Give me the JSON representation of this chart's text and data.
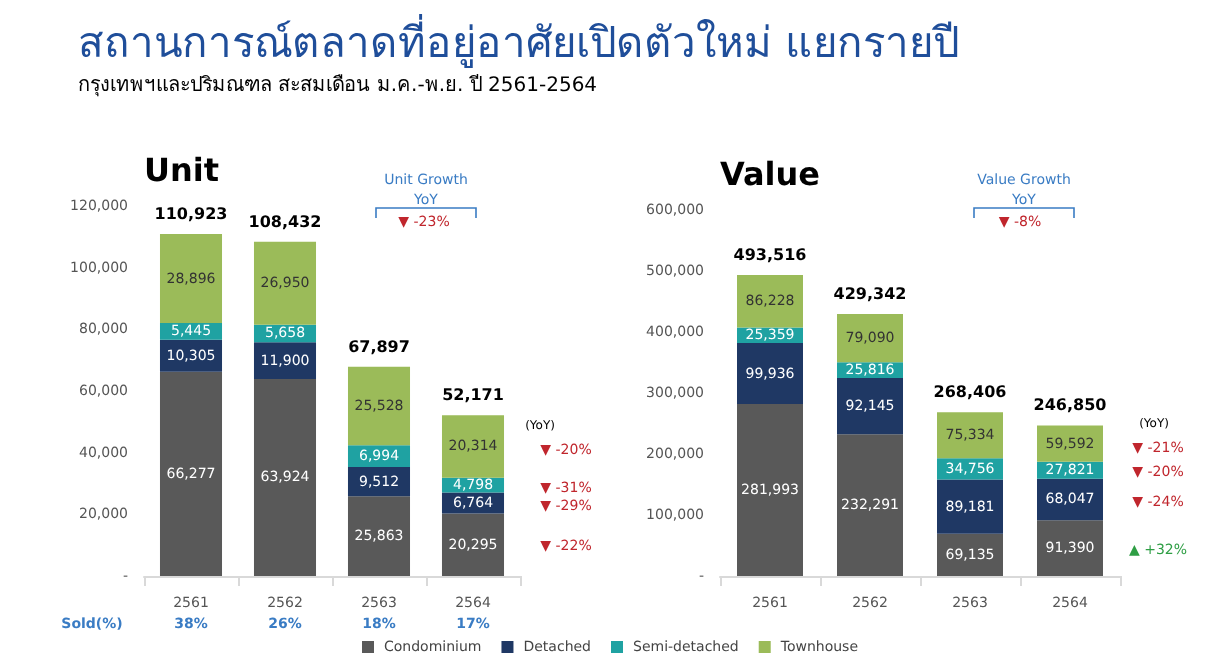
{
  "chart_data": [
    {
      "type": "bar",
      "title": "สถานการณ์ตลาดที่อยู่อาศัยเปิดตัวใหม่ แยกรายปี",
      "subtitle": "กรุงเทพฯและปริมณฑล สะสมเดือน ม.ค.-พ.ย. ปี 2561-2564",
      "ylabel": "Unit",
      "categories": [
        "2561",
        "2562",
        "2563",
        "2564"
      ],
      "stacked": true,
      "legend": "bottom",
      "grid": false,
      "ylim": [
        0,
        120000
      ],
      "yticks": [
        {
          "value": 0,
          "label": "-"
        },
        {
          "value": 20000,
          "label": "20,000"
        },
        {
          "value": 40000,
          "label": "40,000"
        },
        {
          "value": 60000,
          "label": "60,000"
        },
        {
          "value": 80000,
          "label": "80,000"
        },
        {
          "value": 100000,
          "label": "100,000"
        },
        {
          "value": 120000,
          "label": "120,000"
        }
      ],
      "series": [
        {
          "name": "Condominium",
          "color": "#595959",
          "values": [
            66277,
            63924,
            25863,
            20295
          ],
          "value_labels": [
            "66,277",
            "63,924",
            "25,863",
            "20,295"
          ]
        },
        {
          "name": "Detached",
          "color": "#1f3864",
          "values": [
            10305,
            11900,
            9512,
            6764
          ],
          "value_labels": [
            "10,305",
            "11,900",
            "9,512",
            "6,764"
          ]
        },
        {
          "name": "Semi-detached",
          "color": "#1fa2a2",
          "values": [
            5445,
            5658,
            6994,
            4798
          ],
          "value_labels": [
            "5,445",
            "5,658",
            "6,994",
            "4,798"
          ]
        },
        {
          "name": "Townhouse",
          "color": "#9bbb59",
          "values": [
            28896,
            26950,
            25528,
            20314
          ],
          "value_labels": [
            "28,896",
            "26,950",
            "25,528",
            "20,314"
          ]
        }
      ],
      "totals": [
        "110,923",
        "108,432",
        "67,897",
        "52,171"
      ],
      "annotations": [
        "Unit Growth",
        "YoY",
        "▼ -23%",
        "(YoY)",
        "▼ -20%",
        "▼ -31%",
        "▼ -29%",
        "▼ -22%",
        "Sold(%)",
        "38%",
        "26%",
        "18%",
        "17%"
      ]
    },
    {
      "type": "bar",
      "ylabel": "Value",
      "categories": [
        "2561",
        "2562",
        "2563",
        "2564"
      ],
      "stacked": true,
      "grid": false,
      "ylim": [
        0,
        600000
      ],
      "yticks": [
        {
          "value": 0,
          "label": "-"
        },
        {
          "value": 100000,
          "label": "100,000"
        },
        {
          "value": 200000,
          "label": "200,000"
        },
        {
          "value": 300000,
          "label": "300,000"
        },
        {
          "value": 400000,
          "label": "400,000"
        },
        {
          "value": 500000,
          "label": "500,000"
        },
        {
          "value": 600000,
          "label": "600,000"
        }
      ],
      "series": [
        {
          "color": "#595959",
          "values": [
            281993,
            232291,
            69135,
            91390
          ],
          "value_labels": [
            "281,993",
            "232,291",
            "69,135",
            "91,390"
          ]
        },
        {
          "color": "#1f3864",
          "values": [
            99936,
            92145,
            89181,
            68047
          ],
          "value_labels": [
            "99,936",
            "92,145",
            "89,181",
            "68,047"
          ]
        },
        {
          "color": "#1fa2a2",
          "values": [
            25359,
            25816,
            34756,
            27821
          ],
          "value_labels": [
            "25,359",
            "25,816",
            "34,756",
            "27,821"
          ]
        },
        {
          "color": "#9bbb59",
          "values": [
            86228,
            79090,
            75334,
            59592
          ],
          "value_labels": [
            "86,228",
            "79,090",
            "75,334",
            "59,592"
          ]
        }
      ],
      "totals": [
        "493,516",
        "429,342",
        "268,406",
        "246,850"
      ],
      "annotations": [
        "Value Growth",
        "YoY",
        "▼ -8%",
        "(YoY)",
        "▼ -21%",
        "▼ -20%",
        "▼ -24%",
        "▲ +32%"
      ]
    }
  ]
}
